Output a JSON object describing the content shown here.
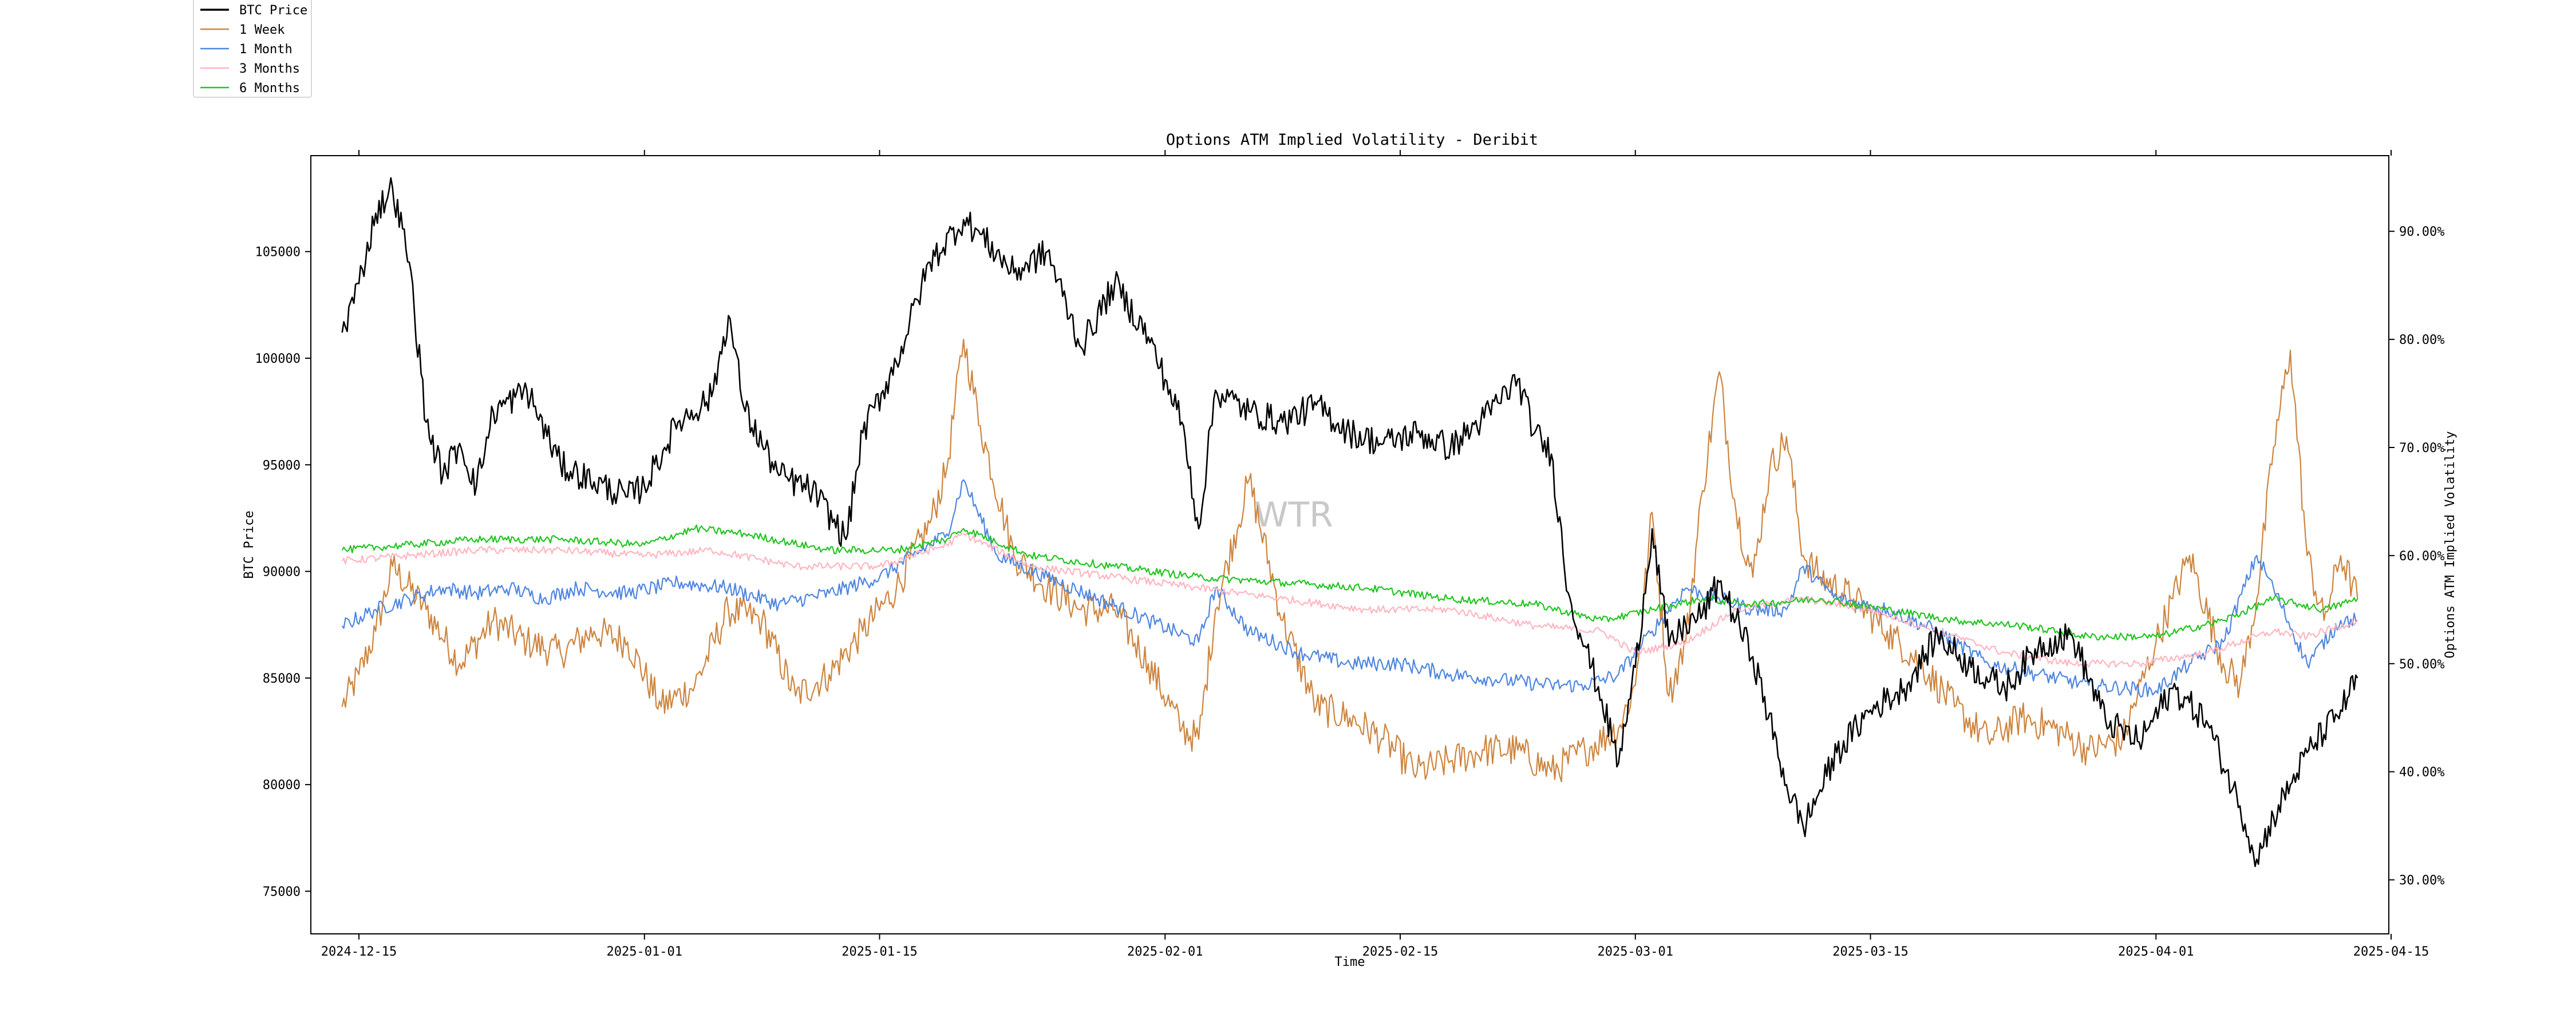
{
  "chart_data": {
    "type": "line",
    "title": "Options ATM Implied Volatility - Deribit",
    "xlabel": "Time",
    "ylabel_left": "BTC Price",
    "ylabel_right": "Options ATM Implied Volatility",
    "watermark": "WTR",
    "legend_position": "outside-top-left",
    "grid": false,
    "x_range": [
      "2024-12-14",
      "2025-04-13"
    ],
    "x_ticks": [
      "2024-12-15",
      "2025-01-01",
      "2025-01-15",
      "2025-02-01",
      "2025-02-15",
      "2025-03-01",
      "2025-03-15",
      "2025-04-01",
      "2025-04-15"
    ],
    "ylim_left": [
      73000,
      109500
    ],
    "yticks_left": [
      "75000",
      "80000",
      "85000",
      "90000",
      "95000",
      "100000",
      "105000"
    ],
    "ylim_right": [
      25,
      97
    ],
    "yticks_right": [
      "30.00%",
      "40.00%",
      "50.00%",
      "60.00%",
      "70.00%",
      "80.00%",
      "90.00%"
    ],
    "series": [
      {
        "name": "BTC Price",
        "axis": "left",
        "color": "#000000",
        "x": [
          "2024-12-14",
          "2024-12-15",
          "2024-12-16",
          "2024-12-17",
          "2024-12-18",
          "2024-12-19",
          "2024-12-20",
          "2024-12-21",
          "2024-12-22",
          "2024-12-23",
          "2024-12-25",
          "2024-12-27",
          "2024-12-29",
          "2024-12-31",
          "2025-01-01",
          "2025-01-03",
          "2025-01-05",
          "2025-01-06",
          "2025-01-07",
          "2025-01-09",
          "2025-01-11",
          "2025-01-13",
          "2025-01-14",
          "2025-01-16",
          "2025-01-18",
          "2025-01-20",
          "2025-01-21",
          "2025-01-23",
          "2025-01-25",
          "2025-01-27",
          "2025-01-29",
          "2025-01-31",
          "2025-02-01",
          "2025-02-02",
          "2025-02-03",
          "2025-02-04",
          "2025-02-06",
          "2025-02-08",
          "2025-02-10",
          "2025-02-12",
          "2025-02-14",
          "2025-02-16",
          "2025-02-18",
          "2025-02-20",
          "2025-02-22",
          "2025-02-23",
          "2025-02-24",
          "2025-02-25",
          "2025-02-26",
          "2025-02-27",
          "2025-02-28",
          "2025-03-01",
          "2025-03-02",
          "2025-03-03",
          "2025-03-04",
          "2025-03-05",
          "2025-03-06",
          "2025-03-08",
          "2025-03-10",
          "2025-03-11",
          "2025-03-13",
          "2025-03-15",
          "2025-03-17",
          "2025-03-19",
          "2025-03-21",
          "2025-03-23",
          "2025-03-25",
          "2025-03-27",
          "2025-03-29",
          "2025-03-31",
          "2025-04-02",
          "2025-04-04",
          "2025-04-06",
          "2025-04-07",
          "2025-04-08",
          "2025-04-09",
          "2025-04-10",
          "2025-04-12",
          "2025-04-13"
        ],
        "values": [
          101200,
          103500,
          106800,
          108000,
          104500,
          97000,
          94500,
          96000,
          94000,
          97500,
          98500,
          95000,
          94200,
          93500,
          94000,
          97000,
          98200,
          102000,
          97500,
          94500,
          93800,
          91500,
          96500,
          99800,
          104500,
          106500,
          105800,
          104000,
          105000,
          100500,
          103500,
          101000,
          99000,
          97000,
          92000,
          98500,
          97500,
          97000,
          97800,
          96500,
          96000,
          96500,
          95800,
          97200,
          99000,
          96500,
          95500,
          89000,
          86500,
          84000,
          81000,
          85500,
          92000,
          86500,
          87500,
          88000,
          89500,
          86000,
          80000,
          78000,
          81500,
          83500,
          84500,
          87000,
          85500,
          84500,
          86500,
          87000,
          83000,
          82000,
          84500,
          83000,
          79000,
          76500,
          78500,
          80000,
          81500,
          83500,
          85000
        ]
      },
      {
        "name": "1 Week",
        "axis": "right",
        "color": "#cd853f",
        "x": [
          "2024-12-14",
          "2024-12-15",
          "2024-12-16",
          "2024-12-17",
          "2024-12-19",
          "2024-12-21",
          "2024-12-23",
          "2024-12-25",
          "2024-12-27",
          "2024-12-29",
          "2024-12-31",
          "2025-01-02",
          "2025-01-04",
          "2025-01-06",
          "2025-01-08",
          "2025-01-10",
          "2025-01-12",
          "2025-01-14",
          "2025-01-16",
          "2025-01-18",
          "2025-01-19",
          "2025-01-20",
          "2025-01-21",
          "2025-01-23",
          "2025-01-25",
          "2025-01-27",
          "2025-01-29",
          "2025-01-31",
          "2025-02-02",
          "2025-02-03",
          "2025-02-04",
          "2025-02-06",
          "2025-02-08",
          "2025-02-10",
          "2025-02-12",
          "2025-02-14",
          "2025-02-16",
          "2025-02-18",
          "2025-02-20",
          "2025-02-22",
          "2025-02-24",
          "2025-02-26",
          "2025-02-28",
          "2025-03-01",
          "2025-03-02",
          "2025-03-03",
          "2025-03-04",
          "2025-03-05",
          "2025-03-06",
          "2025-03-07",
          "2025-03-08",
          "2025-03-09",
          "2025-03-10",
          "2025-03-11",
          "2025-03-12",
          "2025-03-14",
          "2025-03-16",
          "2025-03-18",
          "2025-03-20",
          "2025-03-22",
          "2025-03-24",
          "2025-03-26",
          "2025-03-28",
          "2025-03-30",
          "2025-04-01",
          "2025-04-02",
          "2025-04-03",
          "2025-04-05",
          "2025-04-06",
          "2025-04-07",
          "2025-04-08",
          "2025-04-09",
          "2025-04-10",
          "2025-04-11",
          "2025-04-12",
          "2025-04-13"
        ],
        "values": [
          46,
          49,
          53,
          59,
          55,
          50,
          54,
          52,
          51,
          53,
          52,
          46,
          48,
          55,
          54,
          47,
          49,
          53,
          57,
          63,
          68,
          80,
          72,
          60,
          57,
          55,
          55,
          50,
          44,
          43,
          55,
          67,
          54,
          46,
          45,
          43,
          40,
          41,
          42,
          42,
          40,
          42,
          44,
          48,
          64,
          47,
          52,
          66,
          77,
          64,
          58,
          68,
          71,
          60,
          58,
          56,
          53,
          50,
          46,
          43,
          45,
          44,
          42,
          43,
          52,
          56,
          60,
          50,
          48,
          56,
          70,
          79,
          60,
          54,
          60,
          56
        ]
      },
      {
        "name": "1 Month",
        "axis": "right",
        "color": "#4f86e0",
        "x": [
          "2024-12-14",
          "2024-12-16",
          "2024-12-18",
          "2024-12-20",
          "2024-12-22",
          "2024-12-24",
          "2024-12-26",
          "2024-12-28",
          "2024-12-31",
          "2025-01-03",
          "2025-01-06",
          "2025-01-09",
          "2025-01-12",
          "2025-01-15",
          "2025-01-17",
          "2025-01-19",
          "2025-01-20",
          "2025-01-22",
          "2025-01-25",
          "2025-01-28",
          "2025-01-31",
          "2025-02-03",
          "2025-02-04",
          "2025-02-06",
          "2025-02-09",
          "2025-02-12",
          "2025-02-15",
          "2025-02-18",
          "2025-02-21",
          "2025-02-24",
          "2025-02-26",
          "2025-02-28",
          "2025-03-02",
          "2025-03-04",
          "2025-03-06",
          "2025-03-08",
          "2025-03-10",
          "2025-03-11",
          "2025-03-13",
          "2025-03-16",
          "2025-03-19",
          "2025-03-22",
          "2025-03-25",
          "2025-03-28",
          "2025-04-01",
          "2025-04-03",
          "2025-04-05",
          "2025-04-07",
          "2025-04-08",
          "2025-04-10",
          "2025-04-12",
          "2025-04-13"
        ],
        "values": [
          53.5,
          55,
          56,
          57,
          56.5,
          57,
          56,
          57,
          56.5,
          57.5,
          57,
          55.5,
          56.5,
          58,
          60,
          62,
          67,
          60,
          58,
          56,
          54,
          52,
          57,
          53,
          51,
          50,
          50,
          49,
          48.5,
          48,
          48,
          49,
          53,
          57,
          56,
          55,
          55,
          59,
          56,
          55,
          53,
          50,
          49,
          48,
          47.5,
          50,
          52,
          60,
          57,
          50,
          54,
          54
        ]
      },
      {
        "name": "3 Months",
        "axis": "right",
        "color": "#ffb6c1",
        "x": [
          "2024-12-14",
          "2024-12-18",
          "2024-12-22",
          "2024-12-27",
          "2025-01-01",
          "2025-01-05",
          "2025-01-10",
          "2025-01-15",
          "2025-01-19",
          "2025-01-20",
          "2025-01-24",
          "2025-01-29",
          "2025-02-03",
          "2025-02-08",
          "2025-02-13",
          "2025-02-18",
          "2025-02-23",
          "2025-02-27",
          "2025-03-01",
          "2025-03-04",
          "2025-03-07",
          "2025-03-11",
          "2025-03-15",
          "2025-03-19",
          "2025-03-23",
          "2025-03-27",
          "2025-03-31",
          "2025-04-04",
          "2025-04-08",
          "2025-04-10",
          "2025-04-13"
        ],
        "values": [
          59.5,
          60,
          60.5,
          60.5,
          60,
          60.5,
          59,
          59,
          61,
          62,
          59,
          58,
          57,
          56,
          55,
          55,
          53.5,
          53,
          51,
          52,
          55,
          56,
          55,
          53,
          51,
          50,
          50,
          51,
          53,
          52.5,
          54
        ]
      },
      {
        "name": "6 Months",
        "axis": "right",
        "color": "#22c522",
        "x": [
          "2024-12-14",
          "2024-12-18",
          "2024-12-22",
          "2024-12-27",
          "2025-01-01",
          "2025-01-04",
          "2025-01-07",
          "2025-01-12",
          "2025-01-16",
          "2025-01-19",
          "2025-01-20",
          "2025-01-24",
          "2025-01-29",
          "2025-02-03",
          "2025-02-08",
          "2025-02-13",
          "2025-02-18",
          "2025-02-23",
          "2025-02-27",
          "2025-03-02",
          "2025-03-05",
          "2025-03-08",
          "2025-03-12",
          "2025-03-16",
          "2025-03-20",
          "2025-03-24",
          "2025-03-28",
          "2025-04-01",
          "2025-04-05",
          "2025-04-08",
          "2025-04-11",
          "2025-04-13"
        ],
        "values": [
          60.5,
          61,
          61.5,
          61.5,
          61,
          62.5,
          62,
          60.5,
          60.5,
          61.5,
          62.5,
          60,
          59,
          58,
          57.5,
          57,
          56,
          55.5,
          54,
          55,
          56,
          55.5,
          56,
          55,
          54,
          53.5,
          52.5,
          52.5,
          54,
          56,
          55,
          56
        ]
      }
    ]
  }
}
